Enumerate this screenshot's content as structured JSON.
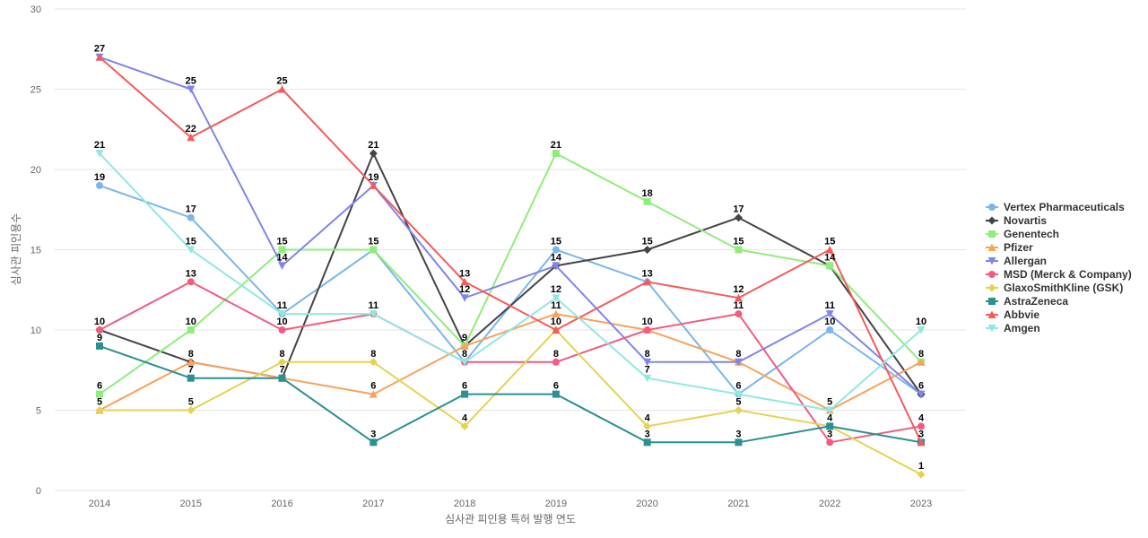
{
  "chart_data": {
    "type": "line",
    "title": "",
    "xlabel": "심사관 피인용 특허 발행 연도",
    "ylabel": "심사관 피인용수",
    "ylim": [
      0,
      30
    ],
    "yticks": [
      0,
      5,
      10,
      15,
      20,
      25,
      30
    ],
    "x": [
      "2014",
      "2015",
      "2016",
      "2017",
      "2018",
      "2019",
      "2020",
      "2021",
      "2022",
      "2023"
    ],
    "grid": "horizontal",
    "legend_position": "right",
    "series": [
      {
        "name": "Vertex Pharmaceuticals",
        "color": "#7cb5ec",
        "marker": "circle",
        "values": [
          19,
          17,
          11,
          15,
          8,
          15,
          13,
          6,
          10,
          6
        ]
      },
      {
        "name": "Novartis",
        "color": "#434348",
        "marker": "diamond",
        "values": [
          10,
          8,
          7,
          21,
          9,
          14,
          15,
          17,
          14,
          6
        ]
      },
      {
        "name": "Genentech",
        "color": "#90ed7d",
        "marker": "square",
        "values": [
          6,
          10,
          15,
          15,
          9,
          21,
          18,
          15,
          14,
          8
        ]
      },
      {
        "name": "Pfizer",
        "color": "#f7a35c",
        "marker": "triangle",
        "values": [
          5,
          8,
          7,
          6,
          9,
          11,
          10,
          8,
          5,
          8
        ]
      },
      {
        "name": "Allergan",
        "color": "#8085e9",
        "marker": "triangle-down",
        "values": [
          27,
          25,
          14,
          19,
          12,
          14,
          8,
          8,
          11,
          6
        ]
      },
      {
        "name": "MSD (Merck & Company)",
        "color": "#f15c80",
        "marker": "circle",
        "values": [
          10,
          13,
          10,
          11,
          8,
          8,
          10,
          11,
          3,
          4
        ]
      },
      {
        "name": "GlaxoSmithKline (GSK)",
        "color": "#e4d354",
        "marker": "diamond",
        "values": [
          5,
          5,
          8,
          8,
          4,
          10,
          4,
          5,
          4,
          1
        ]
      },
      {
        "name": "AstraZeneca",
        "color": "#2b908f",
        "marker": "square",
        "values": [
          9,
          7,
          7,
          3,
          6,
          6,
          3,
          3,
          4,
          3
        ]
      },
      {
        "name": "Abbvie",
        "color": "#f45b5b",
        "marker": "triangle",
        "values": [
          27,
          22,
          25,
          19,
          13,
          10,
          13,
          12,
          15,
          3
        ]
      },
      {
        "name": "Amgen",
        "color": "#91e8e1",
        "marker": "triangle-down",
        "values": [
          21,
          15,
          11,
          11,
          8,
          12,
          7,
          6,
          5,
          10
        ]
      }
    ]
  }
}
